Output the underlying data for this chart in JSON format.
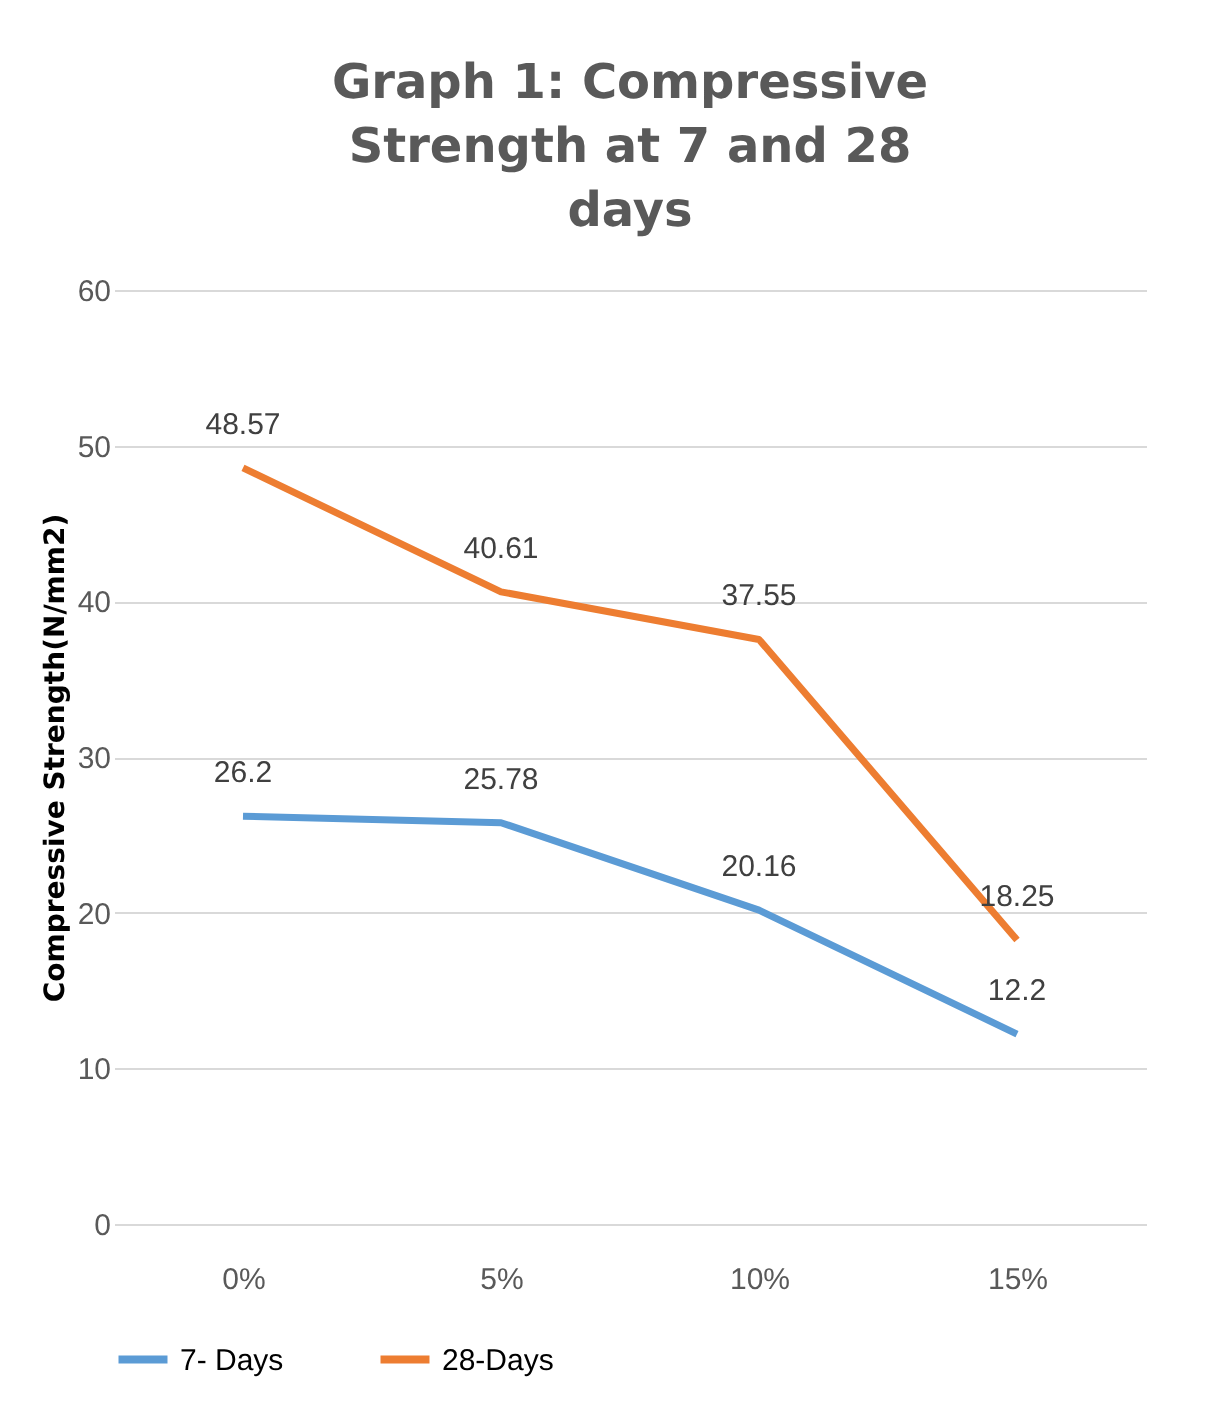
{
  "chart_data": {
    "type": "line",
    "title": "Graph 1: Compressive Strength at 7 and 28 days",
    "ylabel": "Compressive Strength(N/mm2)",
    "categories": [
      "0%",
      "5%",
      "10%",
      "15%"
    ],
    "series": [
      {
        "name": "7- Days",
        "color": "#5b9bd5",
        "values": [
          26.2,
          25.78,
          20.16,
          12.2
        ]
      },
      {
        "name": "28-Days",
        "color": "#ed7d31",
        "values": [
          48.57,
          40.61,
          37.55,
          18.25
        ]
      }
    ],
    "ylim": [
      0,
      60
    ],
    "yticks": [
      0,
      10,
      20,
      30,
      40,
      50,
      60
    ],
    "grid": "y",
    "legend": "bottom",
    "data_labels": true,
    "marker": "none",
    "line_style": "solid"
  }
}
